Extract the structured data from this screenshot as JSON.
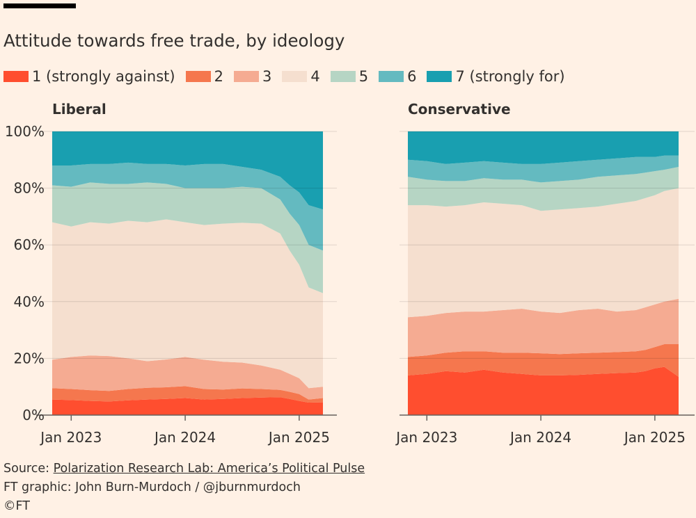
{
  "title": "Attitude towards free trade, by ideology",
  "legend": [
    {
      "label": "1 (strongly against)",
      "color": "#ff4e2f"
    },
    {
      "label": "2",
      "color": "#f5774e"
    },
    {
      "label": "3",
      "color": "#f5ab92"
    },
    {
      "label": "4",
      "color": "#f5dfcf"
    },
    {
      "label": "5",
      "color": "#b6d5c4"
    },
    {
      "label": "6",
      "color": "#64bac0"
    },
    {
      "label": "7 (strongly for)",
      "color": "#199fb0"
    }
  ],
  "footer": {
    "source_prefix": "Source: ",
    "source_link": "Polarization Research Lab: America’s Political Pulse",
    "credit": "FT graphic: John Burn-Murdoch / @jburnmurdoch",
    "copyright": "©FT"
  },
  "chart_data": [
    {
      "type": "area",
      "stacked": true,
      "title": "Liberal",
      "y_ticks": [
        "0%",
        "20%",
        "40%",
        "60%",
        "80%",
        "100%"
      ],
      "ylim": [
        0,
        100
      ],
      "x_range": [
        "Nov 2022",
        "Mar 2025"
      ],
      "x_ticks": [
        {
          "label": "Jan 2023",
          "month": 2
        },
        {
          "label": "Jan 2024",
          "month": 14
        },
        {
          "label": "Jan 2025",
          "month": 26
        }
      ],
      "x_months": [
        0,
        2,
        4,
        6,
        8,
        10,
        12,
        14,
        16,
        18,
        20,
        22,
        24,
        25,
        26,
        27,
        28.5
      ],
      "cumulative_upper_bounds": {
        "1": [
          5.5,
          5.3,
          5,
          4.8,
          5.2,
          5.5,
          5.7,
          6,
          5.5,
          5.7,
          6,
          6.2,
          6.3,
          5.7,
          5,
          4.4,
          4.5
        ],
        "2": [
          9.5,
          9.2,
          8.8,
          8.5,
          9.2,
          9.6,
          9.8,
          10.2,
          9.2,
          9,
          9.4,
          9.2,
          8.9,
          8.2,
          7.4,
          5.5,
          6
        ],
        "3": [
          19.5,
          20.5,
          21,
          20.8,
          20,
          19,
          19.6,
          20.5,
          19.5,
          18.8,
          18.5,
          17.5,
          16,
          14.5,
          13,
          9.5,
          10
        ],
        "4": [
          68,
          66.5,
          68,
          67.5,
          68.5,
          68,
          69,
          68,
          67,
          67.5,
          67.8,
          67.5,
          64,
          58,
          53,
          45,
          43
        ],
        "5": [
          81,
          80.5,
          82,
          81.5,
          81.5,
          82,
          81.5,
          80,
          80,
          80,
          80.5,
          80,
          76,
          71,
          67,
          60,
          58
        ],
        "6": [
          88,
          88,
          88.5,
          88.5,
          89,
          88.5,
          88.5,
          88,
          88.5,
          88.5,
          87.5,
          86.5,
          84,
          81,
          78.5,
          74,
          72.5
        ],
        "7": [
          100,
          100,
          100,
          100,
          100,
          100,
          100,
          100,
          100,
          100,
          100,
          100,
          100,
          100,
          100,
          100,
          100
        ]
      }
    },
    {
      "type": "area",
      "stacked": true,
      "title": "Conservative",
      "y_ticks": [
        "0%",
        "20%",
        "40%",
        "60%",
        "80%",
        "100%"
      ],
      "ylim": [
        0,
        100
      ],
      "x_range": [
        "Nov 2022",
        "Mar 2025"
      ],
      "x_ticks": [
        {
          "label": "Jan 2023",
          "month": 2
        },
        {
          "label": "Jan 2024",
          "month": 14
        },
        {
          "label": "Jan 2025",
          "month": 26
        }
      ],
      "x_months": [
        0,
        2,
        4,
        6,
        8,
        10,
        12,
        14,
        16,
        18,
        20,
        22,
        24,
        25,
        26,
        27,
        28.5
      ],
      "cumulative_upper_bounds": {
        "1": [
          14,
          14.5,
          15.5,
          15,
          16,
          15,
          14.5,
          14,
          14,
          14.2,
          14.5,
          14.8,
          15,
          15.5,
          16.5,
          17,
          13.5
        ],
        "2": [
          20.5,
          21,
          22,
          22.5,
          22.5,
          22,
          22,
          21.8,
          21.5,
          21.8,
          22,
          22.2,
          22.5,
          23,
          24,
          25,
          25
        ],
        "3": [
          34.5,
          35,
          36,
          36.5,
          36.5,
          37,
          37.5,
          36.5,
          36,
          37,
          37.5,
          36.5,
          37,
          38,
          39,
          40,
          41
        ],
        "4": [
          74,
          74,
          73.5,
          74,
          75,
          74.5,
          74,
          72,
          72.5,
          73,
          73.5,
          74.5,
          75.5,
          76.5,
          77.5,
          79,
          80
        ],
        "5": [
          84,
          83,
          82.5,
          82.5,
          83.5,
          83,
          83,
          82,
          82.5,
          83,
          84,
          84.5,
          85,
          85.5,
          86,
          86.5,
          87.5
        ],
        "6": [
          90,
          89.5,
          88.5,
          89,
          89.5,
          89,
          88.5,
          88.5,
          89,
          89.5,
          90,
          90.5,
          91,
          91,
          91,
          91.5,
          91.5
        ],
        "7": [
          100,
          100,
          100,
          100,
          100,
          100,
          100,
          100,
          100,
          100,
          100,
          100,
          100,
          100,
          100,
          100,
          100
        ]
      }
    }
  ]
}
